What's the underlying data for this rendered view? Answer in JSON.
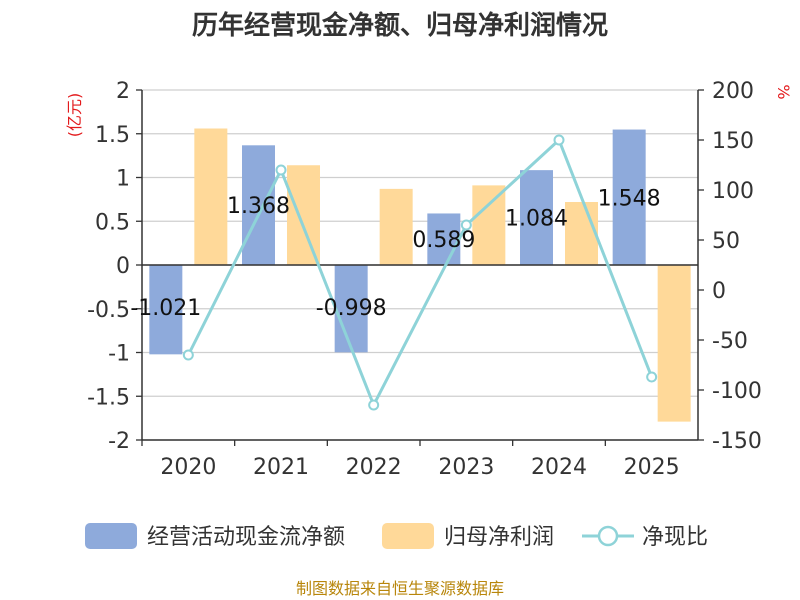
{
  "chart_data": {
    "type": "bar",
    "title": "历年经营现金净额、归母净利润情况",
    "categories": [
      "2020",
      "2021",
      "2022",
      "2023",
      "2024",
      "2025"
    ],
    "series": [
      {
        "name": "经营活动现金流净额",
        "kind": "bar",
        "axis": "left",
        "color": "#8eaadb",
        "values": [
          -1.021,
          1.368,
          -0.998,
          0.589,
          1.084,
          1.548
        ],
        "labels": [
          "-1.021",
          "1.368",
          "-0.998",
          "0.589",
          "1.084",
          "1.548"
        ]
      },
      {
        "name": "归母净利润",
        "kind": "bar",
        "axis": "left",
        "color": "#ffd999",
        "values": [
          1.56,
          1.14,
          0.87,
          0.91,
          0.72,
          -1.79
        ]
      },
      {
        "name": "净现比",
        "kind": "line",
        "axis": "right",
        "color": "#8ed3d8",
        "values": [
          -65,
          120,
          -115,
          65,
          150,
          -87
        ]
      }
    ],
    "left_axis": {
      "label": "(亿元)",
      "ylim": [
        -2,
        2
      ],
      "ticks": [
        2,
        1.5,
        1,
        0.5,
        0,
        -0.5,
        -1,
        -1.5,
        -2
      ],
      "tick_labels": [
        "2",
        "1.5",
        "1",
        "0.5",
        "0",
        "-0.5",
        "-1",
        "-1.5",
        "-2"
      ]
    },
    "right_axis": {
      "label": "%",
      "ylim": [
        -150,
        200
      ],
      "ticks": [
        200,
        150,
        100,
        50,
        0,
        -50,
        -100,
        -150
      ],
      "tick_labels": [
        "200",
        "150",
        "100",
        "50",
        "0",
        "-50",
        "-100",
        "-150"
      ]
    },
    "legend": {
      "position": "bottom"
    },
    "grid": true
  },
  "source": "制图数据来自恒生聚源数据库"
}
